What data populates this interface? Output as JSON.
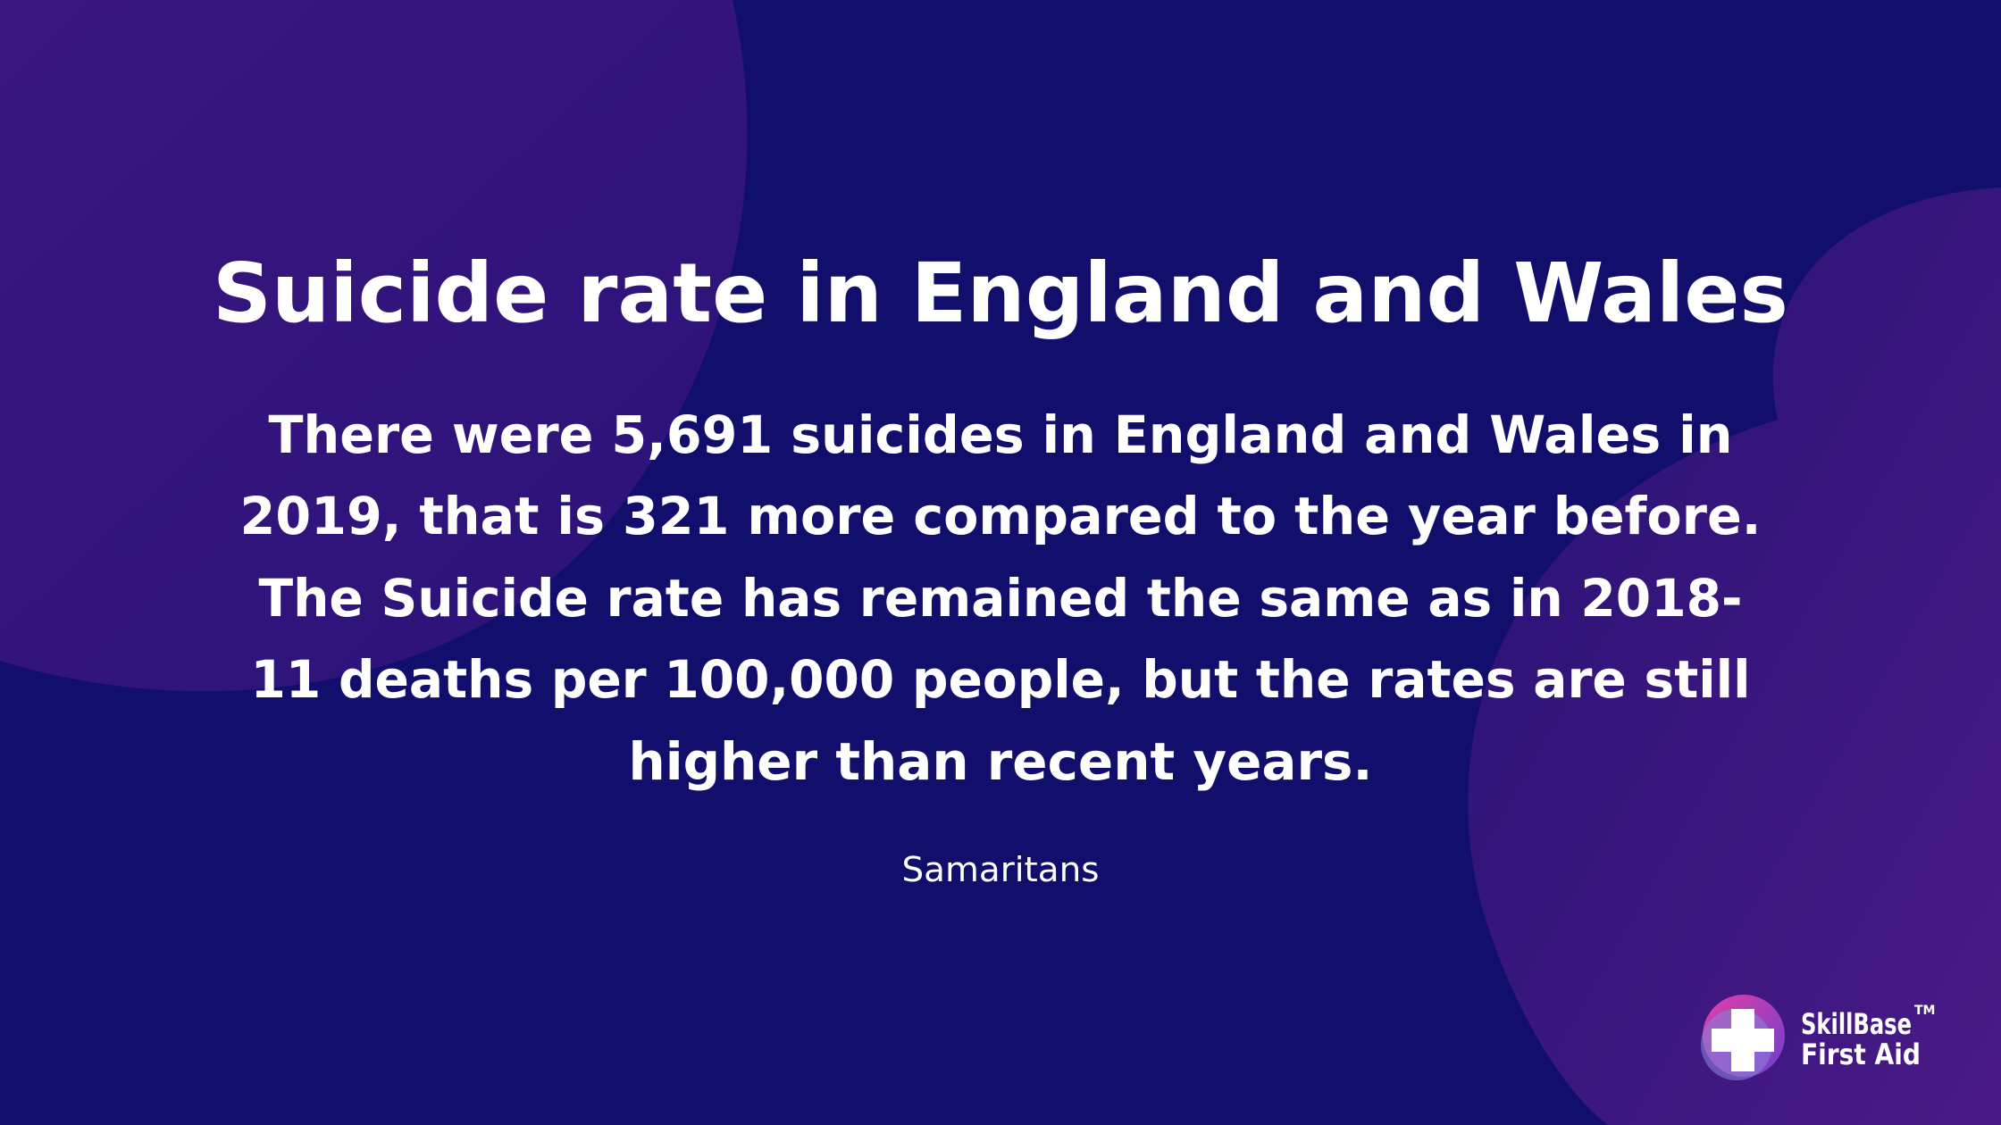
{
  "header": {
    "title": "Suicide rate in England and Wales"
  },
  "body": {
    "lines": [
      "There were 5,691 suicides in England and Wales in",
      "2019, that is 321 more compared to the year before.",
      "The Suicide rate has remained the same as in 2018-",
      "11 deaths per 100,000 people, but the rates are still",
      "higher than recent years."
    ]
  },
  "source": "Samaritans",
  "logo": {
    "line1": "SkillBase",
    "line2": "First Aid",
    "trademark": "TM"
  }
}
